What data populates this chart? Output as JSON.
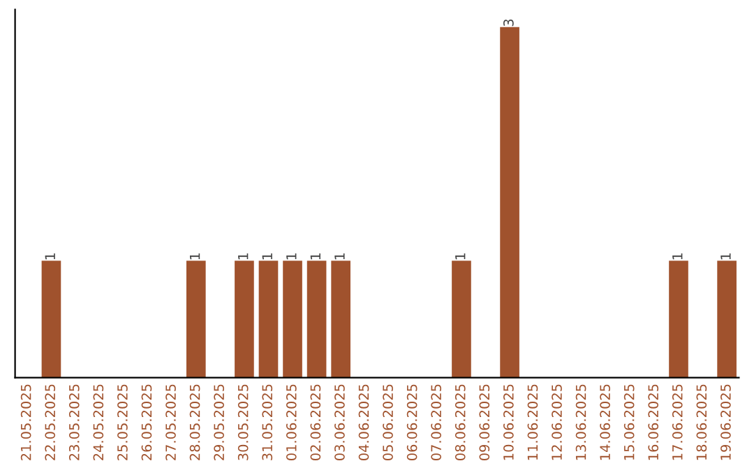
{
  "chart_data": {
    "type": "bar",
    "categories": [
      "21.05.2025",
      "22.05.2025",
      "23.05.2025",
      "24.05.2025",
      "25.05.2025",
      "26.05.2025",
      "27.05.2025",
      "28.05.2025",
      "29.05.2025",
      "30.05.2025",
      "31.05.2025",
      "01.06.2025",
      "02.06.2025",
      "03.06.2025",
      "04.06.2025",
      "05.06.2025",
      "06.06.2025",
      "07.06.2025",
      "08.06.2025",
      "09.06.2025",
      "10.06.2025",
      "11.06.2025",
      "12.06.2025",
      "13.06.2025",
      "14.06.2025",
      "15.06.2025",
      "16.06.2025",
      "17.06.2025",
      "18.06.2025",
      "19.06.2025"
    ],
    "values": [
      null,
      1,
      null,
      null,
      null,
      null,
      null,
      1,
      null,
      1,
      1,
      1,
      1,
      1,
      null,
      null,
      null,
      null,
      1,
      null,
      3,
      null,
      null,
      null,
      null,
      null,
      null,
      1,
      null,
      1
    ],
    "value_labels": [
      null,
      "1",
      null,
      null,
      null,
      null,
      null,
      "1",
      null,
      "1",
      "1",
      "1",
      "1",
      "1",
      null,
      null,
      null,
      null,
      "1",
      null,
      "3",
      null,
      null,
      null,
      null,
      null,
      null,
      "1",
      null,
      "1"
    ],
    "color": "#a0522d",
    "ylim": [
      0,
      3.15
    ],
    "tick_labels": "x",
    "grid": false,
    "legend": false
  }
}
